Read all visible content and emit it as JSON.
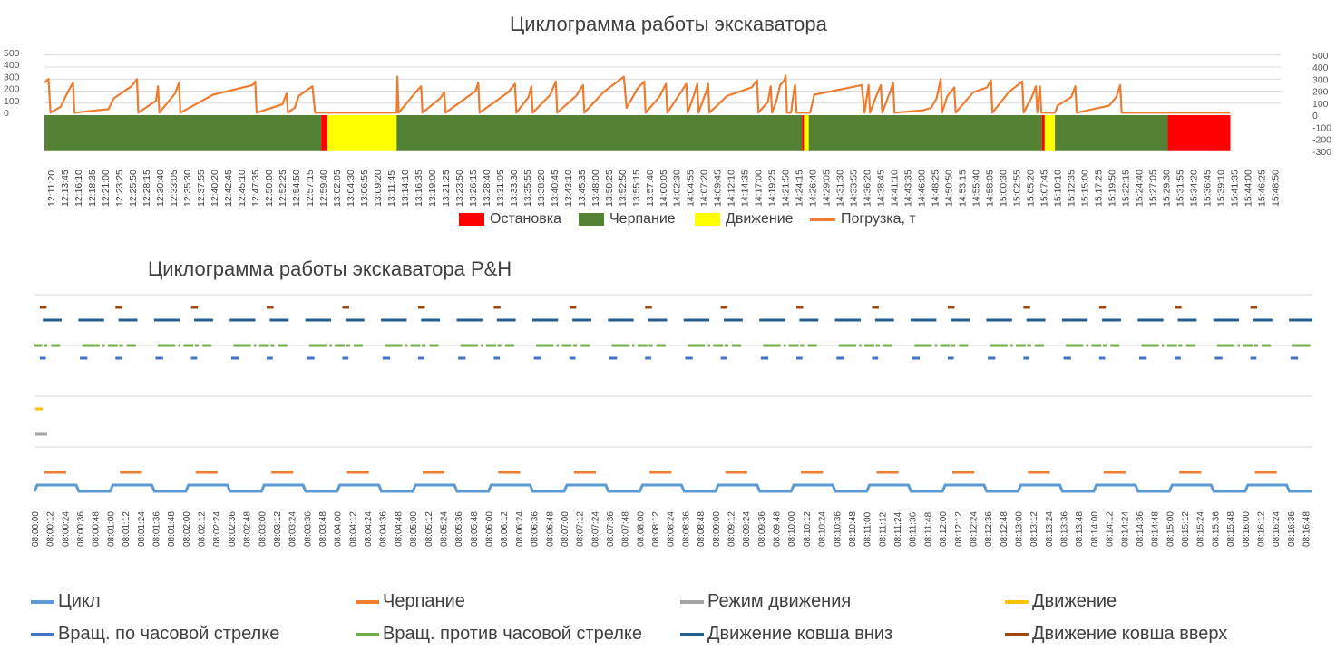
{
  "chart_data": [
    {
      "type": "combo",
      "title": "Циклограмма работы экскаватора",
      "y_left_ticks": [
        "500",
        "400",
        "300",
        "200",
        "100",
        "0"
      ],
      "y_right_ticks": [
        "500",
        "400",
        "300",
        "200",
        "100",
        "0",
        "-100",
        "-200",
        "-300"
      ],
      "ylim_right": [
        -300,
        500
      ],
      "x_labels": [
        "12:11:20",
        "12:13:45",
        "12:16:10",
        "12:18:35",
        "12:21:00",
        "12:23:25",
        "12:25:50",
        "12:28:15",
        "12:30:40",
        "12:33:05",
        "12:35:30",
        "12:37:55",
        "12:40:20",
        "12:42:45",
        "12:45:10",
        "12:47:35",
        "12:50:00",
        "12:52:25",
        "12:54:50",
        "12:57:15",
        "12:59:40",
        "13:02:05",
        "13:04:30",
        "13:06:55",
        "13:09:20",
        "13:11:45",
        "13:14:10",
        "13:16:35",
        "13:19:00",
        "13:21:25",
        "13:23:50",
        "13:26:15",
        "13:28:40",
        "13:31:05",
        "13:33:30",
        "13:35:55",
        "13:38:20",
        "13:40:45",
        "13:43:10",
        "13:45:35",
        "13:48:00",
        "13:50:25",
        "13:52:50",
        "13:55:15",
        "13:57:40",
        "14:00:05",
        "14:02:30",
        "14:04:55",
        "14:07:20",
        "14:09:45",
        "14:12:10",
        "14:14:35",
        "14:17:00",
        "14:19:25",
        "14:21:50",
        "14:24:15",
        "14:26:40",
        "14:29:05",
        "14:31:30",
        "14:33:55",
        "14:36:20",
        "14:38:45",
        "14:41:10",
        "14:43:35",
        "14:46:00",
        "14:48:25",
        "14:50:50",
        "14:53:15",
        "14:55:40",
        "14:58:05",
        "15:00:30",
        "15:02:55",
        "15:05:20",
        "15:07:45",
        "15:10:10",
        "15:12:35",
        "15:15:00",
        "15:17:25",
        "15:19:50",
        "15:22:15",
        "15:24:40",
        "15:27:05",
        "15:29:30",
        "15:31:55",
        "15:34:20",
        "15:36:45",
        "15:39:10",
        "15:41:35",
        "15:44:00",
        "15:46:25",
        "15:48:50"
      ],
      "states": [
        {
          "state": "Черпание",
          "from": 0,
          "to": 20.35
        },
        {
          "state": "Остановка",
          "from": 20.35,
          "to": 20.8
        },
        {
          "state": "Движение",
          "from": 20.8,
          "to": 25.9
        },
        {
          "state": "Черпание",
          "from": 25.9,
          "to": 55.7
        },
        {
          "state": "Остановка",
          "from": 55.7,
          "to": 55.85
        },
        {
          "state": "Движение",
          "from": 55.85,
          "to": 56.2
        },
        {
          "state": "Черпание",
          "from": 56.2,
          "to": 73.35
        },
        {
          "state": "Остановка",
          "from": 73.35,
          "to": 73.55
        },
        {
          "state": "Движение",
          "from": 73.55,
          "to": 74.3
        },
        {
          "state": "Черпание",
          "from": 74.3,
          "to": 82.6
        },
        {
          "state": "Остановка",
          "from": 82.6,
          "to": 87.2
        }
      ],
      "load_series": {
        "name": "Погрузка, т",
        "points": [
          [
            0,
            270
          ],
          [
            0.3,
            300
          ],
          [
            0.45,
            20
          ],
          [
            1.2,
            70
          ],
          [
            1.7,
            190
          ],
          [
            2.1,
            270
          ],
          [
            2.2,
            20
          ],
          [
            4.7,
            50
          ],
          [
            5.1,
            140
          ],
          [
            6.4,
            240
          ],
          [
            6.8,
            300
          ],
          [
            6.9,
            20
          ],
          [
            8.2,
            120
          ],
          [
            8.35,
            240
          ],
          [
            8.45,
            20
          ],
          [
            9.6,
            180
          ],
          [
            9.9,
            270
          ],
          [
            10.0,
            20
          ],
          [
            12.4,
            170
          ],
          [
            15.3,
            250
          ],
          [
            15.5,
            280
          ],
          [
            15.6,
            20
          ],
          [
            17.5,
            90
          ],
          [
            17.8,
            180
          ],
          [
            17.9,
            20
          ],
          [
            18.4,
            60
          ],
          [
            18.7,
            160
          ],
          [
            19.7,
            240
          ],
          [
            19.9,
            20
          ],
          [
            25.9,
            20
          ],
          [
            25.95,
            320
          ],
          [
            26.05,
            20
          ],
          [
            27.3,
            190
          ],
          [
            27.7,
            240
          ],
          [
            27.8,
            20
          ],
          [
            29.1,
            140
          ],
          [
            29.4,
            190
          ],
          [
            29.5,
            20
          ],
          [
            31.7,
            200
          ],
          [
            31.9,
            270
          ],
          [
            32.0,
            20
          ],
          [
            34.1,
            190
          ],
          [
            34.6,
            260
          ],
          [
            34.7,
            20
          ],
          [
            35.6,
            150
          ],
          [
            35.8,
            240
          ],
          [
            35.9,
            20
          ],
          [
            37.2,
            170
          ],
          [
            37.6,
            280
          ],
          [
            37.7,
            20
          ],
          [
            39.1,
            160
          ],
          [
            39.6,
            250
          ],
          [
            39.7,
            20
          ],
          [
            41.1,
            190
          ],
          [
            42.6,
            320
          ],
          [
            42.8,
            60
          ],
          [
            43.6,
            220
          ],
          [
            44.1,
            280
          ],
          [
            44.2,
            20
          ],
          [
            45.2,
            150
          ],
          [
            45.7,
            260
          ],
          [
            45.8,
            20
          ],
          [
            46.8,
            190
          ],
          [
            47.2,
            260
          ],
          [
            47.3,
            20
          ],
          [
            47.8,
            180
          ],
          [
            48.0,
            260
          ],
          [
            48.1,
            20
          ],
          [
            48.7,
            210
          ],
          [
            48.8,
            260
          ],
          [
            48.9,
            20
          ],
          [
            50.2,
            160
          ],
          [
            52.0,
            230
          ],
          [
            52.4,
            290
          ],
          [
            52.5,
            20
          ],
          [
            53.2,
            110
          ],
          [
            53.4,
            240
          ],
          [
            53.5,
            20
          ],
          [
            53.8,
            110
          ],
          [
            54.1,
            250
          ],
          [
            54.4,
            290
          ],
          [
            54.5,
            330
          ],
          [
            54.6,
            20
          ],
          [
            54.9,
            20
          ],
          [
            55.1,
            200
          ],
          [
            55.2,
            250
          ],
          [
            55.3,
            20
          ],
          [
            55.6,
            20
          ],
          [
            56.3,
            20
          ],
          [
            56.6,
            170
          ],
          [
            60.1,
            250
          ],
          [
            60.3,
            20
          ],
          [
            60.6,
            250
          ],
          [
            60.7,
            20
          ],
          [
            61.2,
            170
          ],
          [
            61.5,
            250
          ],
          [
            61.6,
            20
          ],
          [
            62.2,
            200
          ],
          [
            62.4,
            270
          ],
          [
            62.5,
            20
          ],
          [
            64.6,
            40
          ],
          [
            65.2,
            60
          ],
          [
            65.6,
            140
          ],
          [
            65.9,
            300
          ],
          [
            66.0,
            20
          ],
          [
            66.4,
            160
          ],
          [
            66.9,
            230
          ],
          [
            67.0,
            20
          ],
          [
            68.3,
            190
          ],
          [
            69.3,
            230
          ],
          [
            69.6,
            290
          ],
          [
            69.7,
            20
          ],
          [
            70.9,
            190
          ],
          [
            71.9,
            280
          ],
          [
            72.0,
            20
          ],
          [
            72.6,
            150
          ],
          [
            72.9,
            240
          ],
          [
            73.0,
            20
          ],
          [
            73.2,
            240
          ],
          [
            73.3,
            20
          ],
          [
            74.3,
            20
          ],
          [
            74.5,
            80
          ],
          [
            75.5,
            150
          ],
          [
            75.8,
            240
          ],
          [
            75.9,
            20
          ],
          [
            78.3,
            80
          ],
          [
            78.8,
            150
          ],
          [
            79.1,
            250
          ],
          [
            79.2,
            20
          ],
          [
            81.7,
            20
          ],
          [
            82.5,
            20
          ],
          [
            87.2,
            20
          ]
        ]
      },
      "legend": [
        {
          "name": "Остановка",
          "color": "#ff0000",
          "kind": "area"
        },
        {
          "name": "Черпание",
          "color": "#548235",
          "kind": "area"
        },
        {
          "name": "Движение",
          "color": "#ffff00",
          "kind": "area"
        },
        {
          "name": "Погрузка, т",
          "color": "#ed7d31",
          "kind": "line"
        }
      ]
    },
    {
      "type": "timeline",
      "title": "Циклограмма работы экскаватора  P&H",
      "x_labels": [
        "08:00:00",
        "08:00:12",
        "08:00:24",
        "08:00:36",
        "08:00:48",
        "08:01:00",
        "08:01:12",
        "08:01:24",
        "08:01:36",
        "08:01:48",
        "08:02:00",
        "08:02:12",
        "08:02:24",
        "08:02:36",
        "08:02:48",
        "08:03:00",
        "08:03:12",
        "08:03:24",
        "08:03:36",
        "08:03:48",
        "08:04:00",
        "08:04:12",
        "08:04:24",
        "08:04:36",
        "08:04:48",
        "08:05:00",
        "08:05:12",
        "08:05:24",
        "08:05:36",
        "08:05:48",
        "08:06:00",
        "08:06:12",
        "08:06:24",
        "08:06:36",
        "08:06:48",
        "08:07:00",
        "08:07:12",
        "08:07:24",
        "08:07:36",
        "08:07:48",
        "08:08:00",
        "08:08:12",
        "08:08:24",
        "08:08:36",
        "08:08:48",
        "08:09:00",
        "08:09:12",
        "08:09:24",
        "08:09:36",
        "08:09:48",
        "08:10:00",
        "08:10:12",
        "08:10:24",
        "08:10:36",
        "08:10:48",
        "08:11:00",
        "08:11:12",
        "08:11:24",
        "08:11:36",
        "08:11:48",
        "08:12:00",
        "08:12:12",
        "08:12:24",
        "08:12:36",
        "08:12:48",
        "08:13:00",
        "08:13:12",
        "08:13:24",
        "08:13:36",
        "08:13:48",
        "08:14:00",
        "08:14:12",
        "08:14:24",
        "08:14:36",
        "08:14:48",
        "08:15:00",
        "08:15:12",
        "08:15:24",
        "08:15:36",
        "08:15:48",
        "08:16:00",
        "08:16:12",
        "08:16:24",
        "08:16:36",
        "08:16:48"
      ],
      "cycle_period_s": 60,
      "series": [
        {
          "name": "Цикл",
          "color": "#5b9bd5"
        },
        {
          "name": "Черпание",
          "color": "#ed7d31"
        },
        {
          "name": "Режим движения",
          "color": "#a5a5a5"
        },
        {
          "name": "Движение",
          "color": "#ffc000"
        },
        {
          "name": "Вращ. по часовой стрелке",
          "color": "#4472c4"
        },
        {
          "name": "Вращ. против часовой стрелке",
          "color": "#70ad47"
        },
        {
          "name": "Движение ковша вниз",
          "color": "#255e91"
        },
        {
          "name": "Движение ковша вверх",
          "color": "#9e480e"
        }
      ]
    }
  ]
}
